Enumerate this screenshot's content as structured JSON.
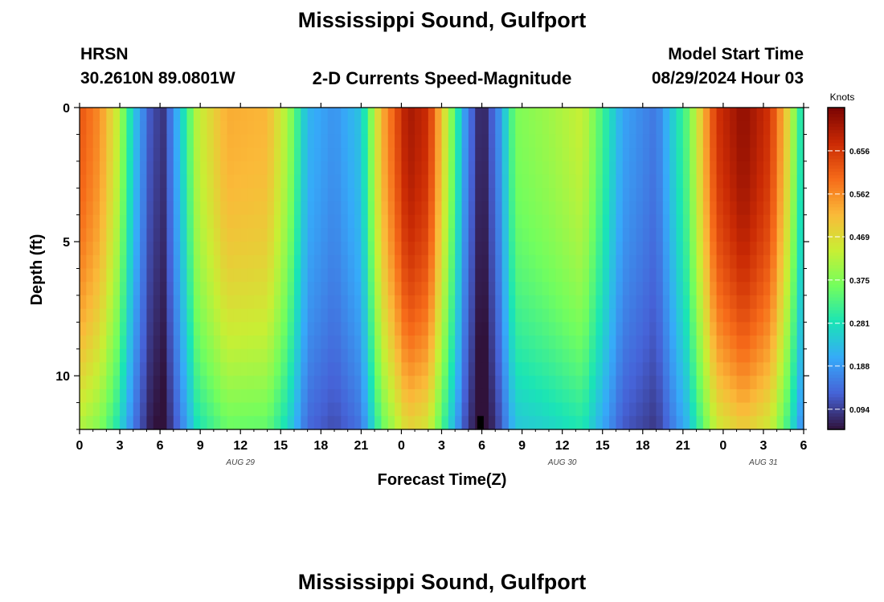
{
  "page": {
    "title": "Mississippi Sound, Gulfport",
    "bottom_title": "Mississippi Sound, Gulfport",
    "station_id": "HRSN",
    "station_coords": "30.2610N  89.0801W",
    "model_label": "Model Start Time",
    "model_time": "08/29/2024 Hour 03"
  },
  "chart_data": {
    "type": "heatmap",
    "title": "2-D Currents Speed-Magnitude",
    "xlabel": "Forecast Time(Z)",
    "ylabel": "Depth (ft)",
    "colorbar_label": "Knots",
    "x_tick_labels": [
      "0",
      "3",
      "6",
      "9",
      "12",
      "15",
      "18",
      "21",
      "0",
      "3",
      "6",
      "9",
      "12",
      "15",
      "18",
      "21",
      "0",
      "3",
      "6"
    ],
    "x_date_labels": [
      {
        "text": "AUG 29",
        "at_hour": 12
      },
      {
        "text": "AUG 30",
        "at_hour": 36
      },
      {
        "text": "AUG 31",
        "at_hour": 51
      }
    ],
    "x_range_hours": [
      0,
      54
    ],
    "y_tick_labels": [
      "0",
      "5",
      "10"
    ],
    "y_range_ft": [
      0,
      12
    ],
    "y_reversed": true,
    "colorbar_ticks": [
      "0.656",
      "0.562",
      "0.469",
      "0.375",
      "0.281",
      "0.188",
      "0.094"
    ],
    "colorbar_range": [
      0.05,
      0.75
    ],
    "colormap": [
      "#30123b",
      "#4662d7",
      "#36aaf9",
      "#1ae4b6",
      "#72fe5e",
      "#c8ef34",
      "#faba39",
      "#f66b19",
      "#ca2a04",
      "#7a0403"
    ],
    "speed_profile_knots": [
      {
        "t": 0,
        "v": 0.62
      },
      {
        "t": 1.5,
        "v": 0.56
      },
      {
        "t": 2.8,
        "v": 0.44
      },
      {
        "t": 4.0,
        "v": 0.25
      },
      {
        "t": 5.2,
        "v": 0.12
      },
      {
        "t": 6.2,
        "v": 0.08
      },
      {
        "t": 7.5,
        "v": 0.24
      },
      {
        "t": 8.8,
        "v": 0.43
      },
      {
        "t": 11.0,
        "v": 0.53
      },
      {
        "t": 14.0,
        "v": 0.52
      },
      {
        "t": 15.5,
        "v": 0.41
      },
      {
        "t": 17.0,
        "v": 0.22
      },
      {
        "t": 19.0,
        "v": 0.18
      },
      {
        "t": 21.0,
        "v": 0.24
      },
      {
        "t": 22.5,
        "v": 0.52
      },
      {
        "t": 24.5,
        "v": 0.71
      },
      {
        "t": 26.0,
        "v": 0.67
      },
      {
        "t": 27.6,
        "v": 0.4
      },
      {
        "t": 28.8,
        "v": 0.18
      },
      {
        "t": 30.0,
        "v": 0.05
      },
      {
        "t": 31.3,
        "v": 0.18
      },
      {
        "t": 32.5,
        "v": 0.37
      },
      {
        "t": 35.0,
        "v": 0.4
      },
      {
        "t": 37.5,
        "v": 0.44
      },
      {
        "t": 39.0,
        "v": 0.32
      },
      {
        "t": 40.5,
        "v": 0.2
      },
      {
        "t": 43.0,
        "v": 0.15
      },
      {
        "t": 45.3,
        "v": 0.34
      },
      {
        "t": 47.5,
        "v": 0.66
      },
      {
        "t": 49.5,
        "v": 0.73
      },
      {
        "t": 51.5,
        "v": 0.66
      },
      {
        "t": 52.8,
        "v": 0.48
      },
      {
        "t": 54.0,
        "v": 0.25
      }
    ]
  }
}
